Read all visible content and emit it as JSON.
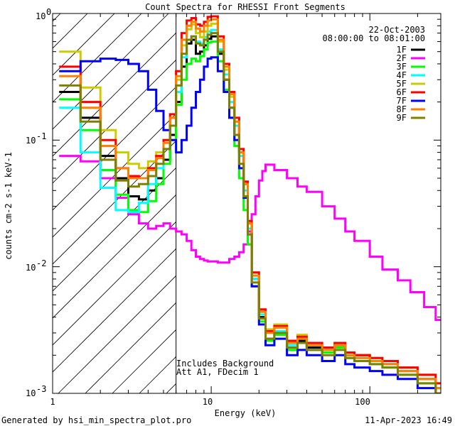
{
  "chart_data": {
    "type": "line",
    "title": "Count Spectra for RHESSI Front Segments",
    "xlabel": "Energy (keV)",
    "ylabel": "counts cm-2 s-1 keV-1",
    "x_scale": "log",
    "y_scale": "log",
    "xlim": [
      1,
      280
    ],
    "ylim": [
      0.001,
      1
    ],
    "x_ticks": [
      {
        "value": 1,
        "label": "1"
      },
      {
        "value": 10,
        "label": "10"
      },
      {
        "value": 100,
        "label": "100"
      }
    ],
    "y_ticks": [
      {
        "value": 1,
        "label": "10",
        "exp": "0"
      },
      {
        "value": 0.1,
        "label": "10",
        "exp": "-1"
      },
      {
        "value": 0.01,
        "label": "10",
        "exp": "-2"
      },
      {
        "value": 0.001,
        "label": "10",
        "exp": "-3"
      }
    ],
    "date": "22-Oct-2003",
    "time_range": "08:00:00 to 08:01:00",
    "note_line1": "Includes Background",
    "note_line2": "Att A1, FDecim 1",
    "threshold_energy": 6,
    "footer_left": "Generated by hsi_min_spectra_plot.pro",
    "footer_right": "11-Apr-2023 16:49",
    "series": [
      {
        "name": "1F",
        "color": "#000000",
        "x": [
          1.1,
          1.5,
          2.0,
          2.5,
          3.0,
          3.5,
          4.0,
          4.5,
          5.0,
          5.5,
          6.0,
          6.5,
          7.0,
          7.5,
          8.0,
          8.5,
          9.0,
          9.5,
          10,
          11,
          12,
          13,
          14,
          15,
          16,
          17,
          18,
          20,
          22,
          25,
          30,
          35,
          40,
          50,
          60,
          70,
          80,
          100,
          120,
          150,
          200,
          260
        ],
        "y": [
          0.24,
          0.15,
          0.075,
          0.05,
          0.036,
          0.034,
          0.04,
          0.05,
          0.07,
          0.11,
          0.2,
          0.38,
          0.58,
          0.62,
          0.48,
          0.5,
          0.56,
          0.63,
          0.66,
          0.48,
          0.3,
          0.18,
          0.13,
          0.08,
          0.045,
          0.022,
          0.008,
          0.004,
          0.0027,
          0.003,
          0.0022,
          0.0026,
          0.0023,
          0.0021,
          0.0024,
          0.002,
          0.002,
          0.0018,
          0.0017,
          0.0015,
          0.0013,
          0.0011
        ]
      },
      {
        "name": "2F",
        "color": "#ff00ff",
        "x": [
          1.1,
          1.5,
          2.0,
          2.5,
          3.0,
          3.5,
          4.0,
          4.5,
          5.0,
          5.5,
          6.0,
          6.5,
          7.0,
          7.5,
          8.0,
          8.5,
          9.0,
          9.5,
          10,
          11,
          12,
          13,
          14,
          15,
          16,
          17,
          18,
          19,
          20,
          21,
          22,
          25,
          30,
          35,
          40,
          50,
          60,
          70,
          80,
          100,
          120,
          150,
          180,
          220,
          260
        ],
        "y": [
          0.075,
          0.068,
          0.05,
          0.035,
          0.026,
          0.022,
          0.02,
          0.021,
          0.022,
          0.02,
          0.019,
          0.018,
          0.016,
          0.0135,
          0.012,
          0.0115,
          0.0112,
          0.011,
          0.011,
          0.0108,
          0.0108,
          0.0115,
          0.012,
          0.013,
          0.015,
          0.019,
          0.026,
          0.036,
          0.048,
          0.057,
          0.064,
          0.058,
          0.05,
          0.043,
          0.039,
          0.03,
          0.024,
          0.019,
          0.016,
          0.012,
          0.0095,
          0.0078,
          0.0063,
          0.0048,
          0.0038
        ]
      },
      {
        "name": "3F",
        "color": "#00ff00",
        "x": [
          1.1,
          1.5,
          2.0,
          2.5,
          3.0,
          3.5,
          4.0,
          4.5,
          5.0,
          5.5,
          6.0,
          6.5,
          7.0,
          7.5,
          8.0,
          8.5,
          9.0,
          9.5,
          10,
          11,
          12,
          13,
          14,
          15,
          16,
          17,
          18,
          20,
          22,
          25,
          30,
          35,
          40,
          50,
          60,
          70,
          80,
          100,
          120,
          150,
          200,
          260
        ],
        "y": [
          0.21,
          0.12,
          0.058,
          0.037,
          0.028,
          0.027,
          0.033,
          0.045,
          0.065,
          0.1,
          0.19,
          0.3,
          0.4,
          0.44,
          0.42,
          0.46,
          0.52,
          0.59,
          0.6,
          0.42,
          0.25,
          0.15,
          0.09,
          0.05,
          0.028,
          0.015,
          0.007,
          0.0037,
          0.0026,
          0.0029,
          0.0022,
          0.0025,
          0.0022,
          0.0021,
          0.0023,
          0.0019,
          0.0018,
          0.0017,
          0.0016,
          0.0014,
          0.0012,
          0.001
        ]
      },
      {
        "name": "4F",
        "color": "#00ffff",
        "x": [
          1.1,
          1.5,
          2.0,
          2.5,
          3.0,
          3.5,
          4.0,
          4.5,
          5.0,
          5.5,
          6.0,
          6.5,
          7.0,
          7.5,
          8.0,
          8.5,
          9.0,
          9.5,
          10,
          11,
          12,
          13,
          14,
          15,
          16,
          17,
          18,
          20,
          22,
          25,
          30,
          35,
          40,
          50,
          60,
          70,
          80,
          100,
          120,
          150,
          200,
          260
        ],
        "y": [
          0.18,
          0.08,
          0.042,
          0.028,
          0.027,
          0.032,
          0.045,
          0.06,
          0.085,
          0.13,
          0.24,
          0.45,
          0.62,
          0.66,
          0.6,
          0.58,
          0.65,
          0.72,
          0.74,
          0.52,
          0.33,
          0.2,
          0.13,
          0.075,
          0.04,
          0.02,
          0.008,
          0.0042,
          0.003,
          0.0031,
          0.0024,
          0.0027,
          0.0024,
          0.0022,
          0.0024,
          0.002,
          0.0019,
          0.0018,
          0.0017,
          0.0015,
          0.0013,
          0.0011
        ]
      },
      {
        "name": "5F",
        "color": "#cccc00",
        "x": [
          1.1,
          1.5,
          2.0,
          2.5,
          3.0,
          3.5,
          4.0,
          4.5,
          5.0,
          5.5,
          6.0,
          6.5,
          7.0,
          7.5,
          8.0,
          8.5,
          9.0,
          9.5,
          10,
          11,
          12,
          13,
          14,
          15,
          16,
          17,
          18,
          20,
          22,
          25,
          30,
          35,
          40,
          50,
          60,
          70,
          80,
          100,
          120,
          150,
          200,
          260
        ],
        "y": [
          0.5,
          0.26,
          0.12,
          0.08,
          0.065,
          0.06,
          0.068,
          0.08,
          0.1,
          0.15,
          0.3,
          0.56,
          0.75,
          0.82,
          0.7,
          0.65,
          0.72,
          0.8,
          0.83,
          0.6,
          0.36,
          0.22,
          0.14,
          0.08,
          0.045,
          0.022,
          0.009,
          0.0045,
          0.0032,
          0.0035,
          0.0026,
          0.0029,
          0.0025,
          0.0023,
          0.0025,
          0.0021,
          0.002,
          0.0019,
          0.0018,
          0.0016,
          0.0014,
          0.0012
        ]
      },
      {
        "name": "6F",
        "color": "#ff0000",
        "x": [
          1.1,
          1.5,
          2.0,
          2.5,
          3.0,
          3.5,
          4.0,
          4.5,
          5.0,
          5.5,
          6.0,
          6.5,
          7.0,
          7.5,
          8.0,
          8.5,
          9.0,
          9.5,
          10,
          11,
          12,
          13,
          14,
          15,
          16,
          17,
          18,
          20,
          22,
          25,
          30,
          35,
          40,
          50,
          60,
          70,
          80,
          100,
          120,
          150,
          200,
          260
        ],
        "y": [
          0.38,
          0.2,
          0.1,
          0.06,
          0.052,
          0.05,
          0.06,
          0.075,
          0.1,
          0.16,
          0.35,
          0.7,
          0.88,
          0.92,
          0.82,
          0.8,
          0.86,
          0.94,
          0.95,
          0.66,
          0.4,
          0.24,
          0.15,
          0.085,
          0.047,
          0.023,
          0.009,
          0.0046,
          0.0031,
          0.0034,
          0.0026,
          0.0028,
          0.0025,
          0.0023,
          0.0025,
          0.0021,
          0.002,
          0.0019,
          0.0018,
          0.0016,
          0.0014,
          0.0012
        ]
      },
      {
        "name": "7F",
        "color": "#0000ff",
        "x": [
          1.1,
          1.5,
          2.0,
          2.5,
          3.0,
          3.5,
          4.0,
          4.5,
          5.0,
          5.5,
          6.0,
          6.5,
          7.0,
          7.5,
          8.0,
          8.5,
          9.0,
          9.5,
          10,
          11,
          12,
          13,
          14,
          15,
          16,
          17,
          18,
          20,
          22,
          25,
          30,
          35,
          40,
          50,
          60,
          70,
          80,
          100,
          120,
          150,
          200,
          260
        ],
        "y": [
          0.35,
          0.42,
          0.44,
          0.43,
          0.4,
          0.35,
          0.25,
          0.17,
          0.12,
          0.1,
          0.08,
          0.1,
          0.13,
          0.18,
          0.24,
          0.3,
          0.38,
          0.44,
          0.45,
          0.35,
          0.24,
          0.15,
          0.1,
          0.06,
          0.035,
          0.018,
          0.007,
          0.0035,
          0.0024,
          0.0027,
          0.002,
          0.0022,
          0.002,
          0.0018,
          0.002,
          0.0017,
          0.0016,
          0.0015,
          0.0014,
          0.0013,
          0.0011,
          0.001
        ]
      },
      {
        "name": "8F",
        "color": "#ff8000",
        "x": [
          1.1,
          1.5,
          2.0,
          2.5,
          3.0,
          3.5,
          4.0,
          4.5,
          5.0,
          5.5,
          6.0,
          6.5,
          7.0,
          7.5,
          8.0,
          8.5,
          9.0,
          9.5,
          10,
          11,
          12,
          13,
          14,
          15,
          16,
          17,
          18,
          20,
          22,
          25,
          30,
          35,
          40,
          50,
          60,
          70,
          80,
          100,
          120,
          150,
          200,
          260
        ],
        "y": [
          0.32,
          0.18,
          0.09,
          0.06,
          0.05,
          0.05,
          0.058,
          0.072,
          0.095,
          0.15,
          0.32,
          0.62,
          0.8,
          0.86,
          0.76,
          0.72,
          0.8,
          0.88,
          0.9,
          0.62,
          0.38,
          0.23,
          0.14,
          0.08,
          0.045,
          0.022,
          0.0085,
          0.0044,
          0.003,
          0.0033,
          0.0025,
          0.0027,
          0.0024,
          0.0022,
          0.0024,
          0.002,
          0.0019,
          0.0018,
          0.0017,
          0.0015,
          0.0013,
          0.0011
        ]
      },
      {
        "name": "9F",
        "color": "#808000",
        "x": [
          1.1,
          1.5,
          2.0,
          2.5,
          3.0,
          3.5,
          4.0,
          4.5,
          5.0,
          5.5,
          6.0,
          6.5,
          7.0,
          7.5,
          8.0,
          8.5,
          9.0,
          9.5,
          10,
          11,
          12,
          13,
          14,
          15,
          16,
          17,
          18,
          20,
          22,
          25,
          30,
          35,
          40,
          50,
          60,
          70,
          80,
          100,
          120,
          150,
          200,
          260
        ],
        "y": [
          0.27,
          0.14,
          0.07,
          0.048,
          0.043,
          0.045,
          0.052,
          0.065,
          0.085,
          0.13,
          0.27,
          0.48,
          0.62,
          0.66,
          0.58,
          0.56,
          0.62,
          0.68,
          0.7,
          0.5,
          0.3,
          0.18,
          0.11,
          0.065,
          0.036,
          0.018,
          0.0075,
          0.0039,
          0.0027,
          0.003,
          0.0023,
          0.0025,
          0.0022,
          0.002,
          0.0022,
          0.0019,
          0.0018,
          0.0017,
          0.0016,
          0.0014,
          0.0012,
          0.001
        ]
      }
    ]
  }
}
